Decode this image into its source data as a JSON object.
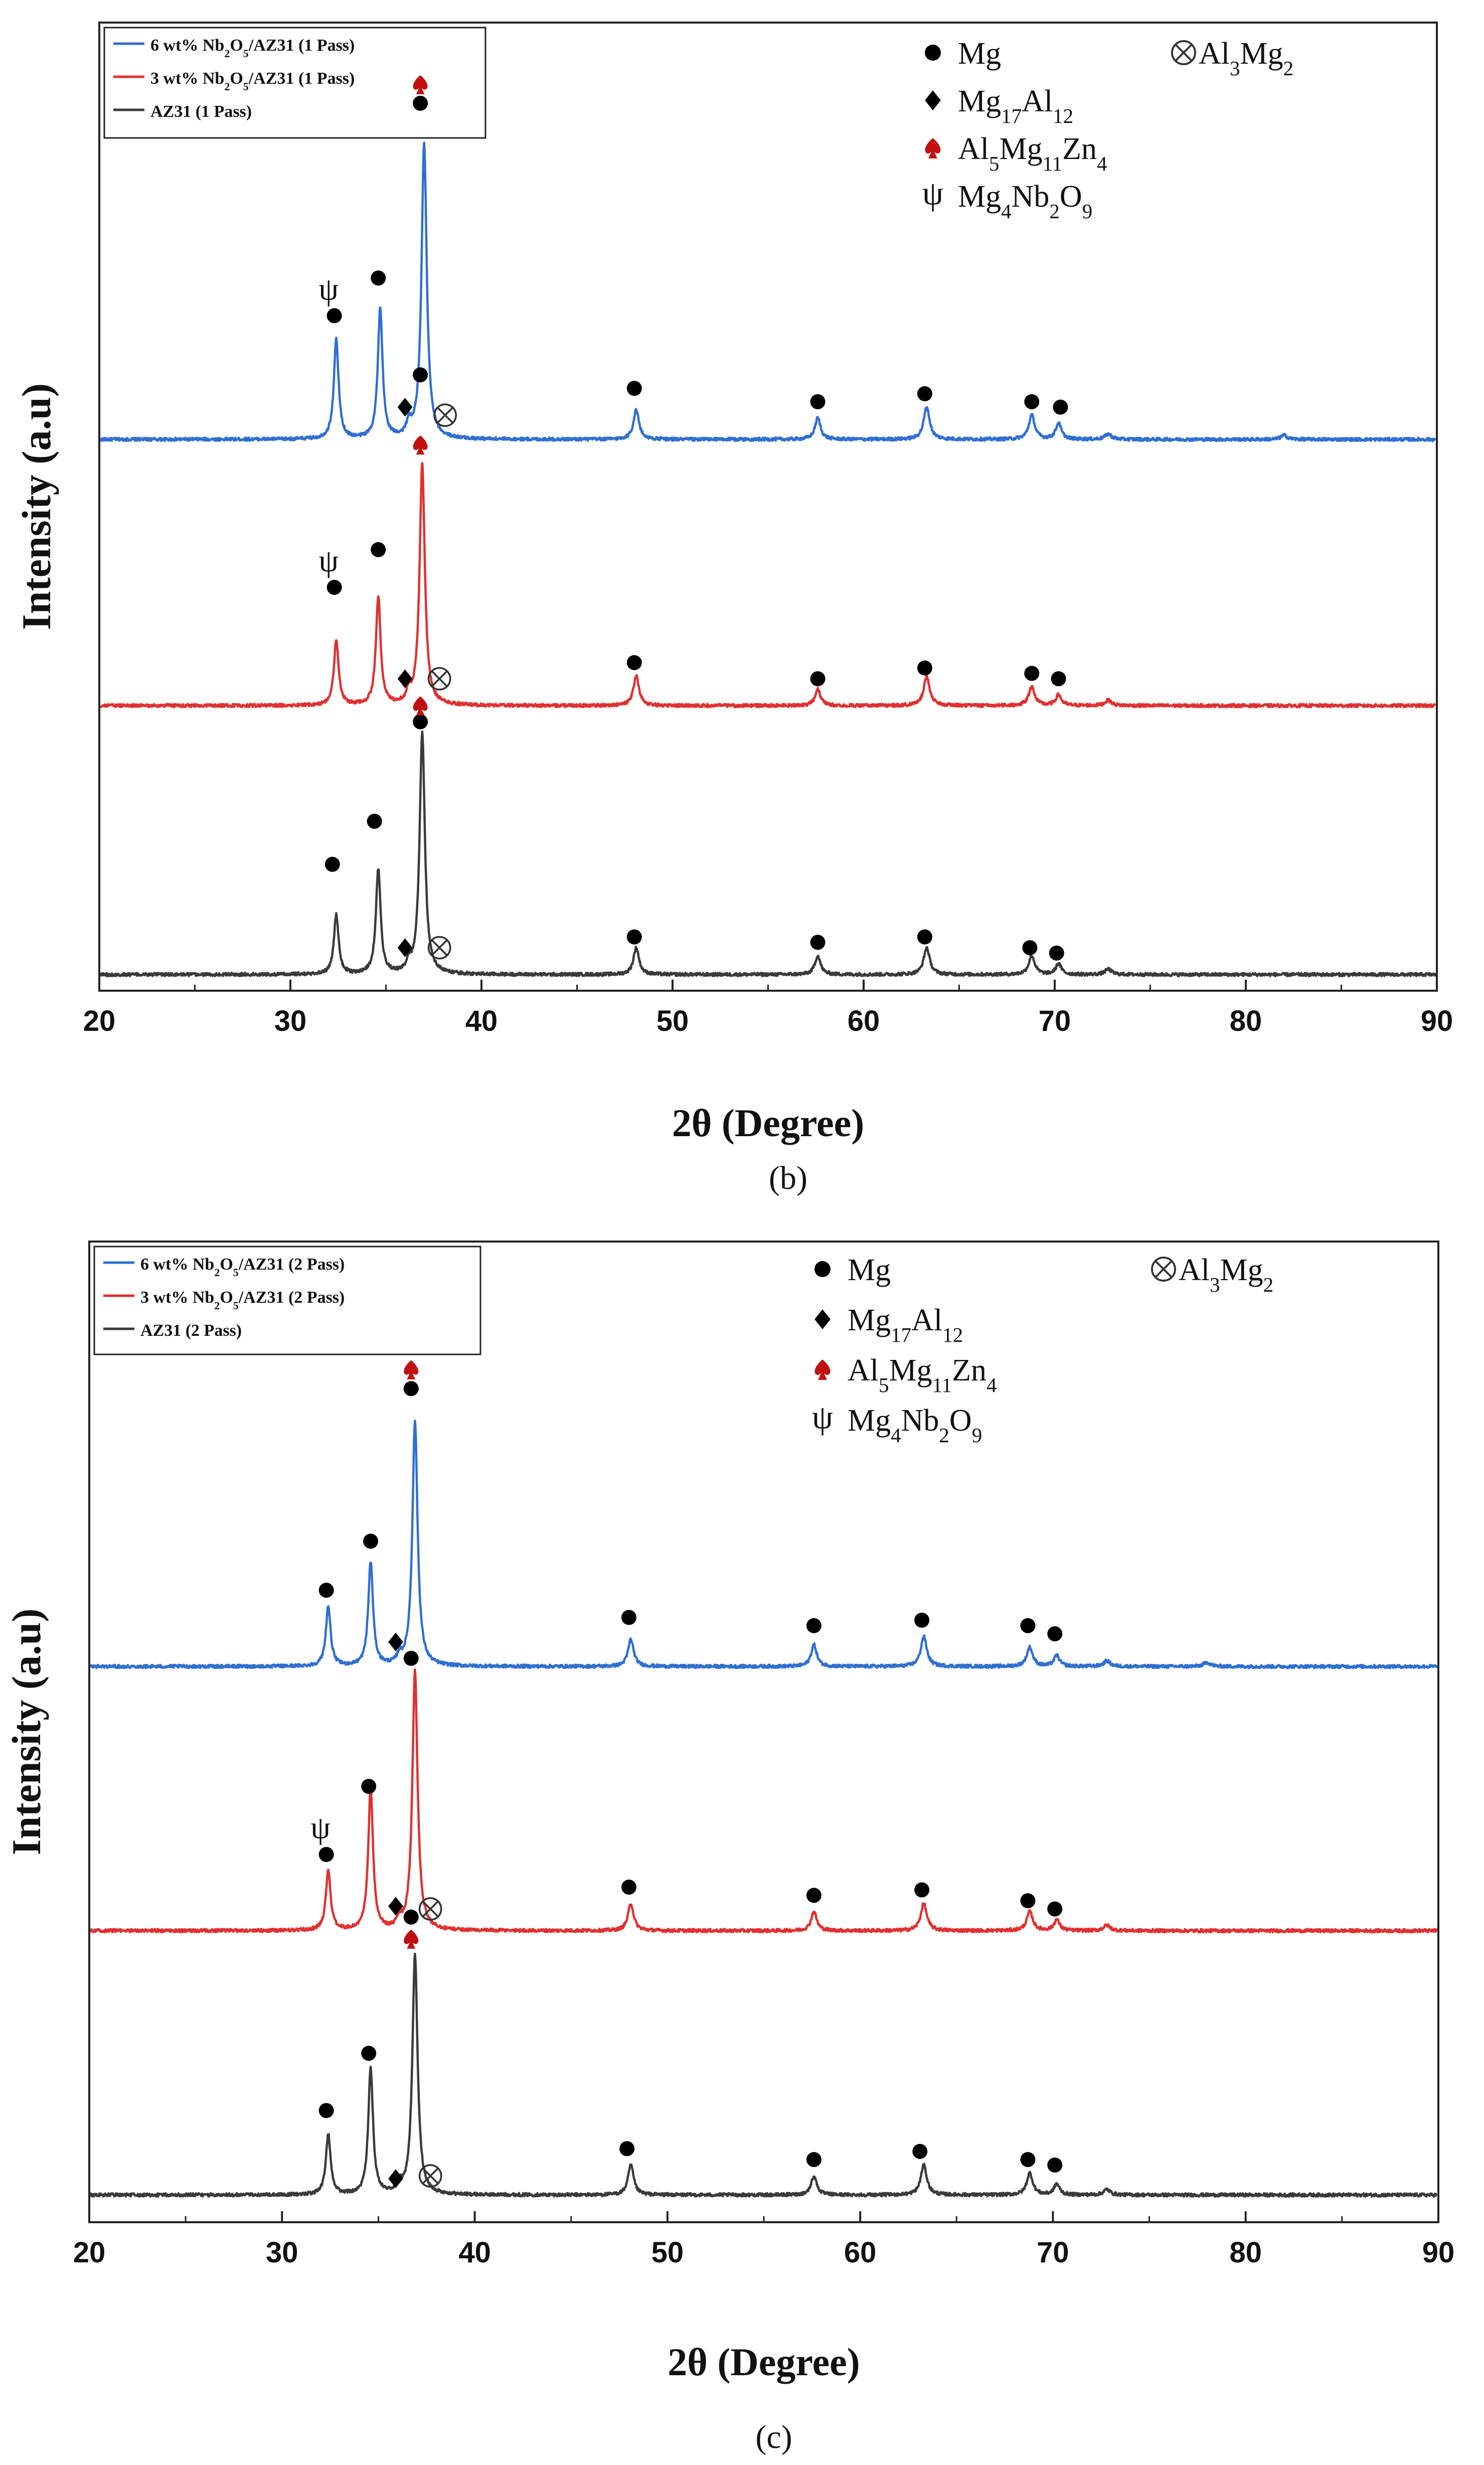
{
  "chart_data": [
    {
      "type": "line",
      "panel_label": "b",
      "xlabel": "2θ (Degree)",
      "ylabel": "Intensity (a.u)",
      "xlim": [
        20,
        90
      ],
      "xticks": [
        20,
        30,
        40,
        50,
        60,
        70,
        80,
        90
      ],
      "ylim": [
        0,
        3.6
      ],
      "legend_position": "top-left",
      "series": [
        {
          "name": "6 wt% Nb2O5/AZ31 (1 Pass)",
          "legend": {
            "pre": "6 wt% Nb",
            "s1": "2",
            "mid": "O",
            "s2": "5",
            "post": "/AZ31 (1 Pass)"
          },
          "color": "#2f6fd0",
          "baseline": 2.05,
          "peaks": [
            {
              "x": 32.4,
              "h": 0.37,
              "w": 0.22
            },
            {
              "x": 34.7,
              "h": 0.48,
              "w": 0.22
            },
            {
              "x": 36.2,
              "h": 0.05,
              "w": 0.2
            },
            {
              "x": 37.0,
              "h": 1.1,
              "w": 0.24
            },
            {
              "x": 48.1,
              "h": 0.11,
              "w": 0.26
            },
            {
              "x": 57.6,
              "h": 0.08,
              "w": 0.26
            },
            {
              "x": 63.3,
              "h": 0.12,
              "w": 0.28
            },
            {
              "x": 68.8,
              "h": 0.09,
              "w": 0.28
            },
            {
              "x": 70.2,
              "h": 0.06,
              "w": 0.26
            },
            {
              "x": 72.8,
              "h": 0.02,
              "w": 0.3
            },
            {
              "x": 82.0,
              "h": 0.015,
              "w": 0.3
            }
          ]
        },
        {
          "name": "3 wt% Nb2O5/AZ31 (1 Pass)",
          "legend": {
            "pre": "3 wt% Nb",
            "s1": "2",
            "mid": "O",
            "s2": "5",
            "post": "/AZ31 (1 Pass)"
          },
          "color": "#e03030",
          "baseline": 1.06,
          "peaks": [
            {
              "x": 32.4,
              "h": 0.24,
              "w": 0.22
            },
            {
              "x": 34.6,
              "h": 0.4,
              "w": 0.22
            },
            {
              "x": 36.2,
              "h": 0.04,
              "w": 0.2
            },
            {
              "x": 36.9,
              "h": 0.9,
              "w": 0.24
            },
            {
              "x": 48.1,
              "h": 0.11,
              "w": 0.26
            },
            {
              "x": 57.6,
              "h": 0.06,
              "w": 0.26
            },
            {
              "x": 63.3,
              "h": 0.11,
              "w": 0.28
            },
            {
              "x": 68.8,
              "h": 0.07,
              "w": 0.28
            },
            {
              "x": 70.2,
              "h": 0.04,
              "w": 0.26
            },
            {
              "x": 72.8,
              "h": 0.02,
              "w": 0.3
            }
          ]
        },
        {
          "name": "AZ31 (1 Pass)",
          "legend": {
            "pre": "AZ31 (1 Pass)",
            "s1": "",
            "mid": "",
            "s2": "",
            "post": ""
          },
          "color": "#3a3a3a",
          "baseline": 0.06,
          "peaks": [
            {
              "x": 32.4,
              "h": 0.22,
              "w": 0.22
            },
            {
              "x": 34.6,
              "h": 0.39,
              "w": 0.22
            },
            {
              "x": 36.2,
              "h": 0.03,
              "w": 0.2
            },
            {
              "x": 36.9,
              "h": 0.9,
              "w": 0.24
            },
            {
              "x": 48.1,
              "h": 0.1,
              "w": 0.26
            },
            {
              "x": 57.6,
              "h": 0.07,
              "w": 0.26
            },
            {
              "x": 63.3,
              "h": 0.1,
              "w": 0.28
            },
            {
              "x": 68.8,
              "h": 0.07,
              "w": 0.28
            },
            {
              "x": 70.2,
              "h": 0.04,
              "w": 0.26
            },
            {
              "x": 72.8,
              "h": 0.02,
              "w": 0.3
            }
          ]
        }
      ],
      "markers": [
        {
          "type": "circle",
          "x": 32.3,
          "y": 2.51
        },
        {
          "type": "circle",
          "x": 34.6,
          "y": 2.65
        },
        {
          "type": "diamond",
          "x": 36.0,
          "y": 2.17
        },
        {
          "type": "circle",
          "x": 36.8,
          "y": 3.3
        },
        {
          "type": "spade",
          "x": 36.8,
          "y": 3.37
        },
        {
          "type": "psi",
          "x": 32.0,
          "y": 2.6
        },
        {
          "type": "otimes",
          "x": 38.1,
          "y": 2.14
        },
        {
          "type": "circle",
          "x": 48.0,
          "y": 2.24
        },
        {
          "type": "circle",
          "x": 57.6,
          "y": 2.19
        },
        {
          "type": "circle",
          "x": 63.2,
          "y": 2.22
        },
        {
          "type": "circle",
          "x": 68.8,
          "y": 2.19
        },
        {
          "type": "circle",
          "x": 70.3,
          "y": 2.17
        },
        {
          "type": "circle",
          "x": 32.3,
          "y": 1.5
        },
        {
          "type": "circle",
          "x": 34.6,
          "y": 1.64
        },
        {
          "type": "diamond",
          "x": 36.0,
          "y": 1.16
        },
        {
          "type": "circle",
          "x": 36.8,
          "y": 2.29
        },
        {
          "type": "spade",
          "x": 36.8,
          "y": 2.03
        },
        {
          "type": "psi",
          "x": 32.0,
          "y": 1.59
        },
        {
          "type": "otimes",
          "x": 37.8,
          "y": 1.16
        },
        {
          "type": "circle",
          "x": 48.0,
          "y": 1.22
        },
        {
          "type": "circle",
          "x": 57.6,
          "y": 1.16
        },
        {
          "type": "circle",
          "x": 63.2,
          "y": 1.2
        },
        {
          "type": "circle",
          "x": 68.8,
          "y": 1.18
        },
        {
          "type": "circle",
          "x": 70.2,
          "y": 1.16
        },
        {
          "type": "circle",
          "x": 32.2,
          "y": 0.47
        },
        {
          "type": "circle",
          "x": 34.4,
          "y": 0.63
        },
        {
          "type": "diamond",
          "x": 36.0,
          "y": 0.16
        },
        {
          "type": "circle",
          "x": 36.8,
          "y": 1.0
        },
        {
          "type": "spade",
          "x": 36.8,
          "y": 1.06
        },
        {
          "type": "otimes",
          "x": 37.8,
          "y": 0.16
        },
        {
          "type": "circle",
          "x": 48.0,
          "y": 0.2
        },
        {
          "type": "circle",
          "x": 57.6,
          "y": 0.18
        },
        {
          "type": "circle",
          "x": 63.2,
          "y": 0.2
        },
        {
          "type": "circle",
          "x": 68.7,
          "y": 0.16
        },
        {
          "type": "circle",
          "x": 70.1,
          "y": 0.14
        }
      ],
      "phase_key": [
        {
          "symbol": "circle",
          "label": "Mg"
        },
        {
          "symbol": "diamond",
          "label": "Mg17Al12",
          "text": {
            "pre": "Mg",
            "s1": "17",
            "mid": "Al",
            "s2": "12",
            "post": ""
          }
        },
        {
          "symbol": "spade",
          "label": "Al5Mg11Zn4",
          "text": {
            "pre": "Al",
            "s1": "5",
            "mid": "Mg",
            "s2": "11",
            "post": "Zn",
            "s3": "4"
          }
        },
        {
          "symbol": "psi",
          "label": "Mg4Nb2O9",
          "text": {
            "pre": "Mg",
            "s1": "4",
            "mid": "Nb",
            "s2": "2",
            "post": "O",
            "s3": "9"
          }
        },
        {
          "symbol": "otimes",
          "label": "Al3Mg2",
          "text": {
            "pre": "Al",
            "s1": "3",
            "mid": "Mg",
            "s2": "2",
            "post": ""
          }
        }
      ]
    },
    {
      "type": "line",
      "panel_label": "c",
      "xlabel": "2θ (Degree)",
      "ylabel": "Intensity (a.u)",
      "xlim": [
        20,
        90
      ],
      "xticks": [
        20,
        30,
        40,
        50,
        60,
        70,
        80,
        90
      ],
      "ylim": [
        0,
        3.6
      ],
      "legend_position": "top-left",
      "series": [
        {
          "name": "6 wt% Nb2O5/AZ31 (2 Pass)",
          "legend": {
            "pre": "6 wt% Nb",
            "s1": "2",
            "mid": "O",
            "s2": "5",
            "post": "/AZ31 (2 Pass)"
          },
          "color": "#2f6fd0",
          "baseline": 2.04,
          "peaks": [
            {
              "x": 32.4,
              "h": 0.22,
              "w": 0.22
            },
            {
              "x": 34.6,
              "h": 0.38,
              "w": 0.22
            },
            {
              "x": 36.1,
              "h": 0.03,
              "w": 0.2
            },
            {
              "x": 36.9,
              "h": 0.9,
              "w": 0.24
            },
            {
              "x": 48.1,
              "h": 0.1,
              "w": 0.26
            },
            {
              "x": 57.6,
              "h": 0.08,
              "w": 0.26
            },
            {
              "x": 63.3,
              "h": 0.11,
              "w": 0.28
            },
            {
              "x": 68.8,
              "h": 0.07,
              "w": 0.28
            },
            {
              "x": 70.2,
              "h": 0.04,
              "w": 0.26
            },
            {
              "x": 72.8,
              "h": 0.02,
              "w": 0.3
            },
            {
              "x": 78.0,
              "h": 0.015,
              "w": 0.3
            }
          ]
        },
        {
          "name": "3 wt% Nb2O5/AZ31 (2 Pass)",
          "legend": {
            "pre": "3 wt% Nb",
            "s1": "2",
            "mid": "O",
            "s2": "5",
            "post": "/AZ31 (2 Pass)"
          },
          "color": "#e03030",
          "baseline": 1.07,
          "peaks": [
            {
              "x": 32.4,
              "h": 0.22,
              "w": 0.22
            },
            {
              "x": 34.6,
              "h": 0.52,
              "w": 0.22
            },
            {
              "x": 36.1,
              "h": 0.03,
              "w": 0.2
            },
            {
              "x": 36.9,
              "h": 0.95,
              "w": 0.24
            },
            {
              "x": 48.1,
              "h": 0.1,
              "w": 0.26
            },
            {
              "x": 57.6,
              "h": 0.07,
              "w": 0.26
            },
            {
              "x": 63.3,
              "h": 0.1,
              "w": 0.28
            },
            {
              "x": 68.8,
              "h": 0.07,
              "w": 0.28
            },
            {
              "x": 70.2,
              "h": 0.04,
              "w": 0.26
            },
            {
              "x": 72.8,
              "h": 0.02,
              "w": 0.3
            }
          ]
        },
        {
          "name": "AZ31 (2 Pass)",
          "legend": {
            "pre": "AZ31 (2 Pass)",
            "s1": "",
            "mid": "",
            "s2": "",
            "post": ""
          },
          "color": "#3a3a3a",
          "baseline": 0.1,
          "peaks": [
            {
              "x": 32.4,
              "h": 0.22,
              "w": 0.22
            },
            {
              "x": 34.6,
              "h": 0.46,
              "w": 0.22
            },
            {
              "x": 36.1,
              "h": 0.03,
              "w": 0.2
            },
            {
              "x": 36.9,
              "h": 0.88,
              "w": 0.24
            },
            {
              "x": 48.1,
              "h": 0.11,
              "w": 0.26
            },
            {
              "x": 57.6,
              "h": 0.07,
              "w": 0.26
            },
            {
              "x": 63.3,
              "h": 0.11,
              "w": 0.28
            },
            {
              "x": 68.8,
              "h": 0.08,
              "w": 0.28
            },
            {
              "x": 70.2,
              "h": 0.04,
              "w": 0.26
            },
            {
              "x": 72.8,
              "h": 0.02,
              "w": 0.3
            }
          ]
        }
      ],
      "markers": [
        {
          "type": "circle",
          "x": 32.3,
          "y": 2.32
        },
        {
          "type": "circle",
          "x": 34.6,
          "y": 2.5
        },
        {
          "type": "diamond",
          "x": 35.9,
          "y": 2.13
        },
        {
          "type": "circle",
          "x": 36.7,
          "y": 3.06
        },
        {
          "type": "spade",
          "x": 36.7,
          "y": 3.13
        },
        {
          "type": "circle",
          "x": 48.0,
          "y": 2.22
        },
        {
          "type": "circle",
          "x": 57.6,
          "y": 2.19
        },
        {
          "type": "circle",
          "x": 63.2,
          "y": 2.21
        },
        {
          "type": "circle",
          "x": 68.7,
          "y": 2.19
        },
        {
          "type": "circle",
          "x": 70.1,
          "y": 2.16
        },
        {
          "type": "circle",
          "x": 32.3,
          "y": 1.35
        },
        {
          "type": "circle",
          "x": 34.5,
          "y": 1.6
        },
        {
          "type": "diamond",
          "x": 35.9,
          "y": 1.16
        },
        {
          "type": "circle",
          "x": 36.7,
          "y": 2.07
        },
        {
          "type": "psi",
          "x": 32.0,
          "y": 1.44
        },
        {
          "type": "otimes",
          "x": 37.7,
          "y": 1.15
        },
        {
          "type": "circle",
          "x": 48.0,
          "y": 1.23
        },
        {
          "type": "circle",
          "x": 57.6,
          "y": 1.2
        },
        {
          "type": "circle",
          "x": 63.2,
          "y": 1.22
        },
        {
          "type": "circle",
          "x": 68.7,
          "y": 1.18
        },
        {
          "type": "circle",
          "x": 70.1,
          "y": 1.15
        },
        {
          "type": "circle",
          "x": 32.3,
          "y": 0.41
        },
        {
          "type": "circle",
          "x": 34.5,
          "y": 0.62
        },
        {
          "type": "diamond",
          "x": 35.9,
          "y": 0.16
        },
        {
          "type": "circle",
          "x": 36.7,
          "y": 1.12
        },
        {
          "type": "spade",
          "x": 36.7,
          "y": 1.04
        },
        {
          "type": "otimes",
          "x": 37.7,
          "y": 0.17
        },
        {
          "type": "circle",
          "x": 47.9,
          "y": 0.27
        },
        {
          "type": "circle",
          "x": 57.6,
          "y": 0.23
        },
        {
          "type": "circle",
          "x": 63.1,
          "y": 0.26
        },
        {
          "type": "circle",
          "x": 68.7,
          "y": 0.23
        },
        {
          "type": "circle",
          "x": 70.1,
          "y": 0.21
        }
      ],
      "phase_key": [
        {
          "symbol": "circle",
          "label": "Mg"
        },
        {
          "symbol": "diamond",
          "label": "Mg17Al12",
          "text": {
            "pre": "Mg",
            "s1": "17",
            "mid": "Al",
            "s2": "12",
            "post": ""
          }
        },
        {
          "symbol": "spade",
          "label": "Al5Mg11Zn4",
          "text": {
            "pre": "Al",
            "s1": "5",
            "mid": "Mg",
            "s2": "11",
            "post": "Zn",
            "s3": "4"
          }
        },
        {
          "symbol": "psi",
          "label": "Mg4Nb2O9",
          "text": {
            "pre": "Mg",
            "s1": "4",
            "mid": "Nb",
            "s2": "2",
            "post": "O",
            "s3": "9"
          }
        },
        {
          "symbol": "otimes",
          "label": "Al3Mg2",
          "text": {
            "pre": "Al",
            "s1": "3",
            "mid": "Mg",
            "s2": "2",
            "post": ""
          }
        }
      ]
    }
  ]
}
